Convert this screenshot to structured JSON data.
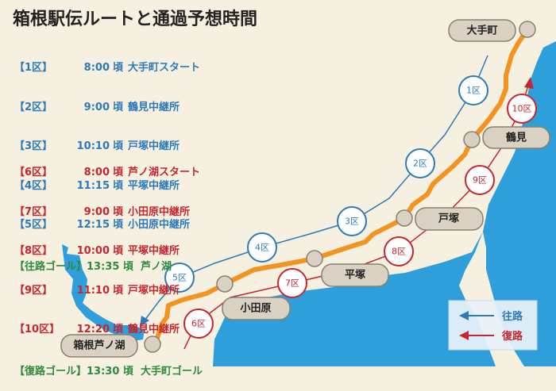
{
  "title": "箱根駅伝ルートと通過予想時間",
  "colors": {
    "outbound": "#2d7ab9",
    "return": "#c52630",
    "goal": "#2f8a3c",
    "route": "#f39322",
    "sea": "#2f9fdc",
    "land": "#f6f0e0"
  },
  "outbound": [
    {
      "section": "【1区】",
      "time": "8:00",
      "suffix": "頃",
      "place": "大手町スタート"
    },
    {
      "section": "【2区】",
      "time": "9:00",
      "suffix": "頃",
      "place": "鶴見中継所"
    },
    {
      "section": "【3区】",
      "time": "10:10",
      "suffix": "頃",
      "place": "戸塚中継所"
    },
    {
      "section": "【4区】",
      "time": "11:15",
      "suffix": "頃",
      "place": "平塚中継所"
    },
    {
      "section": "【5区】",
      "time": "12:15",
      "suffix": "頃",
      "place": "小田原中継所"
    }
  ],
  "outbound_goal": "【往路ゴール】13:35 頃  芦ノ湖",
  "return": [
    {
      "section": "【6区】",
      "time": "8:00",
      "suffix": "頃",
      "place": "芦ノ湖スタート"
    },
    {
      "section": "【7区】",
      "time": "9:00",
      "suffix": "頃",
      "place": "小田原中継所"
    },
    {
      "section": "【8区】",
      "time": "10:00",
      "suffix": "頃",
      "place": "平塚中継所"
    },
    {
      "section": "【9区】",
      "time": "11:10",
      "suffix": "頃",
      "place": "戸塚中継所"
    },
    {
      "section": "【10区】",
      "time": "12:20",
      "suffix": "頃",
      "place": "鶴見中継所"
    }
  ],
  "return_goal": "【復路ゴール】13:30 頃  大手町ゴール",
  "map": {
    "stations": [
      "大手町",
      "鶴見",
      "戸塚",
      "平塚",
      "小田原",
      "箱根芦ノ湖"
    ],
    "outbound_sections": [
      "1区",
      "2区",
      "3区",
      "4区",
      "5区"
    ],
    "return_sections": [
      "6区",
      "7区",
      "8区",
      "9区",
      "10区"
    ],
    "legend": {
      "outbound": "往路",
      "return": "復路"
    }
  }
}
